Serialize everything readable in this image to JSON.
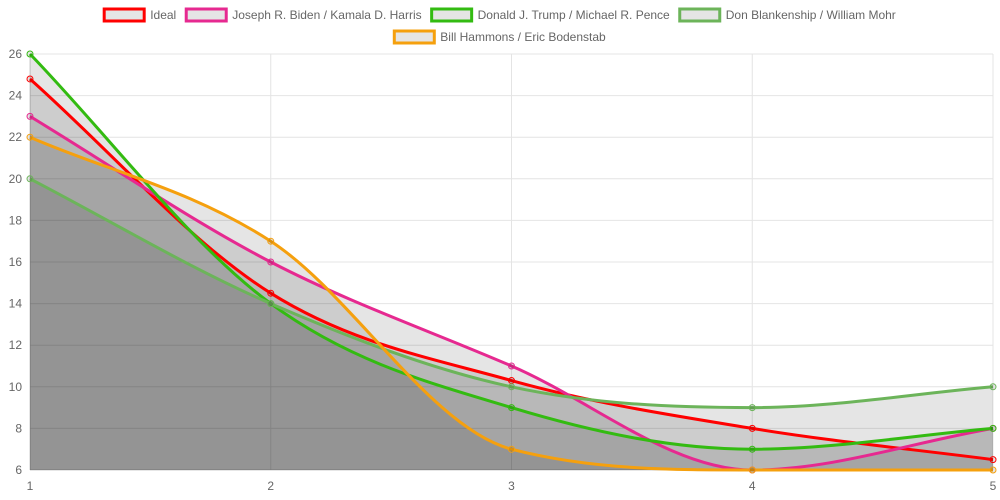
{
  "chart_data": {
    "type": "line",
    "title": "",
    "xlabel": "",
    "ylabel": "",
    "x": [
      1,
      2,
      3,
      4,
      5
    ],
    "ylim": [
      6,
      26
    ],
    "yticks": [
      6,
      8,
      10,
      12,
      14,
      16,
      18,
      20,
      22,
      24,
      26
    ],
    "grid": true,
    "legend_position": "top",
    "series": [
      {
        "name": "Ideal",
        "color": "#ff0000",
        "values": [
          24.8,
          14.5,
          10.3,
          8.0,
          6.5
        ]
      },
      {
        "name": "Joseph R. Biden / Kamala D. Harris",
        "color": "#e62990",
        "values": [
          23,
          16,
          11,
          6,
          8
        ]
      },
      {
        "name": "Donald J. Trump / Michael R. Pence",
        "color": "#33bb11",
        "values": [
          26,
          14,
          9,
          7,
          8
        ]
      },
      {
        "name": "Don Blankenship / William Mohr",
        "color": "#6cb45a",
        "values": [
          20,
          14,
          10,
          9,
          10
        ]
      },
      {
        "name": "Bill Hammons / Eric Bodenstab",
        "color": "#f5a00e",
        "values": [
          22,
          17,
          7,
          6,
          6
        ]
      }
    ]
  }
}
